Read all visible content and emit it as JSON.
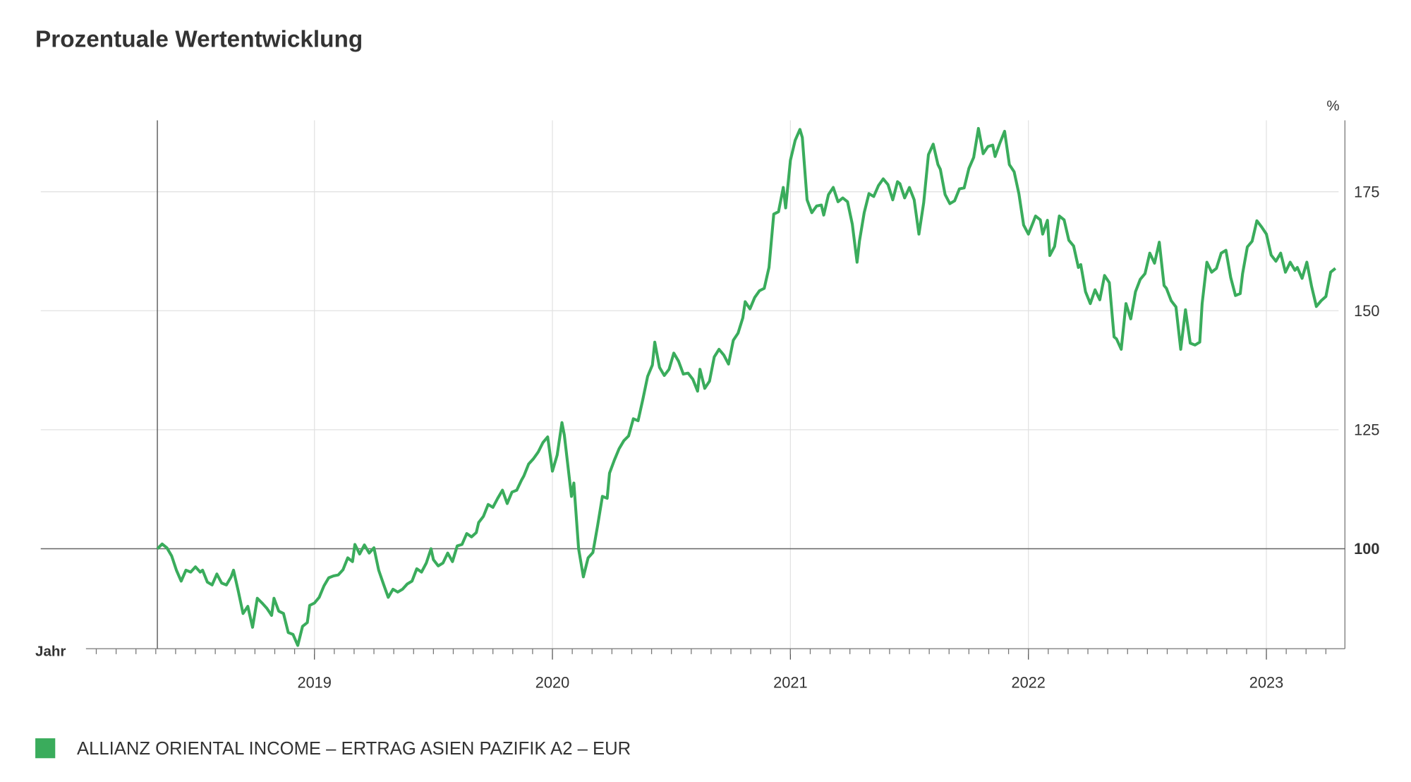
{
  "chart_data": {
    "type": "line",
    "title": "Prozentuale Wertentwicklung",
    "x_label": "Jahr",
    "y_label": "%",
    "xlim": [
      2018.04,
      2023.33
    ],
    "xticks": [
      2019,
      2020,
      2021,
      2022,
      2023
    ],
    "ylim": [
      79,
      190
    ],
    "yticks": [
      100,
      125,
      150,
      175
    ],
    "baseline": 100,
    "grid": true,
    "legend": "bottom-left",
    "x": [
      2018.34,
      2018.36,
      2018.38,
      2018.4,
      2018.42,
      2018.44,
      2018.46,
      2018.48,
      2018.5,
      2018.52,
      2018.53,
      2018.55,
      2018.57,
      2018.59,
      2018.61,
      2018.63,
      2018.65,
      2018.66,
      2018.68,
      2018.7,
      2018.72,
      2018.74,
      2018.76,
      2018.78,
      2018.8,
      2018.82,
      2018.83,
      2018.85,
      2018.87,
      2018.89,
      2018.91,
      2018.93,
      2018.95,
      2018.97,
      2018.98,
      2019.0,
      2019.02,
      2019.04,
      2019.06,
      2019.08,
      2019.1,
      2019.12,
      2019.14,
      2019.16,
      2019.17,
      2019.19,
      2019.21,
      2019.23,
      2019.25,
      2019.27,
      2019.29,
      2019.31,
      2019.33,
      2019.35,
      2019.37,
      2019.39,
      2019.41,
      2019.43,
      2019.45,
      2019.47,
      2019.49,
      2019.5,
      2019.52,
      2019.54,
      2019.56,
      2019.58,
      2019.6,
      2019.62,
      2019.64,
      2019.66,
      2019.68,
      2019.69,
      2019.71,
      2019.73,
      2019.75,
      2019.77,
      2019.79,
      2019.81,
      2019.83,
      2019.85,
      2019.87,
      2019.88,
      2019.9,
      2019.92,
      2019.94,
      2019.96,
      2019.98,
      2020.0,
      2020.02,
      2020.04,
      2020.05,
      2020.08,
      2020.09,
      2020.11,
      2020.13,
      2020.15,
      2020.17,
      2020.19,
      2020.21,
      2020.23,
      2020.24,
      2020.26,
      2020.28,
      2020.3,
      2020.32,
      2020.34,
      2020.36,
      2020.38,
      2020.4,
      2020.42,
      2020.43,
      2020.45,
      2020.47,
      2020.49,
      2020.51,
      2020.53,
      2020.55,
      2020.57,
      2020.59,
      2020.61,
      2020.62,
      2020.64,
      2020.66,
      2020.68,
      2020.7,
      2020.72,
      2020.74,
      2020.76,
      2020.78,
      2020.8,
      2020.81,
      2020.83,
      2020.85,
      2020.87,
      2020.89,
      2020.91,
      2020.93,
      2020.95,
      2020.97,
      2020.98,
      2021.0,
      2021.02,
      2021.04,
      2021.05,
      2021.07,
      2021.09,
      2021.11,
      2021.13,
      2021.14,
      2021.16,
      2021.18,
      2021.2,
      2021.22,
      2021.24,
      2021.26,
      2021.28,
      2021.29,
      2021.31,
      2021.33,
      2021.35,
      2021.37,
      2021.39,
      2021.41,
      2021.43,
      2021.45,
      2021.46,
      2021.48,
      2021.5,
      2021.52,
      2021.54,
      2021.56,
      2021.58,
      2021.6,
      2021.62,
      2021.63,
      2021.65,
      2021.67,
      2021.69,
      2021.71,
      2021.73,
      2021.75,
      2021.77,
      2021.79,
      2021.81,
      2021.83,
      2021.85,
      2021.86,
      2021.88,
      2021.9,
      2021.92,
      2021.94,
      2021.96,
      2021.98,
      2022.0,
      2022.02,
      2022.03,
      2022.05,
      2022.06,
      2022.08,
      2022.09,
      2022.11,
      2022.13,
      2022.15,
      2022.17,
      2022.19,
      2022.21,
      2022.22,
      2022.24,
      2022.26,
      2022.28,
      2022.3,
      2022.32,
      2022.34,
      2022.36,
      2022.37,
      2022.39,
      2022.41,
      2022.43,
      2022.45,
      2022.47,
      2022.49,
      2022.51,
      2022.53,
      2022.55,
      2022.57,
      2022.58,
      2022.6,
      2022.62,
      2022.64,
      2022.66,
      2022.68,
      2022.7,
      2022.72,
      2022.73,
      2022.75,
      2022.77,
      2022.79,
      2022.81,
      2022.83,
      2022.85,
      2022.87,
      2022.89,
      2022.9,
      2022.92,
      2022.94,
      2022.96,
      2022.98,
      2023.0,
      2023.02,
      2023.04,
      2023.06,
      2023.08,
      2023.1,
      2023.12,
      2023.13,
      2023.15,
      2023.17,
      2023.19,
      2023.21,
      2023.23,
      2023.25,
      2023.27,
      2023.29
    ],
    "series": [
      {
        "name": "ALLIANZ ORIENTAL INCOME – ERTRAG ASIEN PAZIFIK A2 – EUR",
        "color": "#3aac5c",
        "values": [
          100,
          101,
          100.2,
          98.5,
          95.5,
          93.2,
          95.5,
          95.1,
          96.2,
          95.1,
          95.5,
          93,
          92.4,
          94.7,
          92.8,
          92.4,
          94.1,
          95.5,
          91.1,
          86.4,
          87.9,
          83.5,
          89.6,
          88.6,
          87.5,
          86,
          89.6,
          86.9,
          86.4,
          82.4,
          82,
          79.7,
          83.7,
          84.5,
          88.1,
          88.6,
          89.8,
          92.2,
          93.9,
          94.3,
          94.5,
          95.6,
          98.1,
          97.3,
          100.9,
          98.9,
          100.8,
          99.1,
          100.2,
          95.5,
          92.6,
          89.8,
          91.5,
          90.9,
          91.5,
          92.6,
          93.2,
          95.8,
          95.1,
          97,
          100,
          97.7,
          96.4,
          97,
          99.1,
          97.3,
          100.6,
          100.9,
          103.2,
          102.5,
          103.4,
          105.5,
          106.8,
          109.3,
          108.7,
          110.6,
          112.3,
          109.5,
          111.9,
          112.3,
          114.4,
          115.3,
          117.8,
          118.9,
          120.3,
          122.3,
          123.5,
          116.3,
          119.7,
          126.5,
          123.9,
          111,
          113.8,
          100,
          94.1,
          98.1,
          99.2,
          104.9,
          111,
          110.6,
          115.9,
          118.6,
          121,
          122.7,
          123.7,
          127.3,
          126.9,
          131.4,
          136.2,
          138.6,
          143.4,
          138.1,
          136.4,
          137.7,
          141.1,
          139.4,
          136.7,
          136.9,
          135.6,
          133.1,
          137.7,
          133.7,
          135.2,
          140.3,
          141.9,
          140.7,
          138.8,
          143.8,
          145.3,
          148.5,
          151.9,
          150.4,
          152.8,
          154.2,
          154.7,
          159.1,
          170.3,
          170.8,
          175.9,
          171.6,
          181.6,
          185.8,
          188.1,
          186.4,
          173.3,
          170.6,
          172,
          172.2,
          170.1,
          174.4,
          175.9,
          172.9,
          173.7,
          172.9,
          168.2,
          160.2,
          164.6,
          170.6,
          174.6,
          174,
          176.3,
          177.7,
          176.5,
          173.3,
          177.1,
          176.7,
          173.7,
          175.9,
          173.3,
          166.1,
          172.7,
          182.8,
          185,
          180.7,
          179.7,
          174.4,
          172.5,
          173.1,
          175.6,
          175.8,
          179.9,
          182.2,
          188.3,
          183,
          184.5,
          184.8,
          182.4,
          185.2,
          187.7,
          180.7,
          179.2,
          174.6,
          168,
          166.1,
          168.6,
          169.9,
          169.1,
          166.1,
          169,
          161.6,
          163.5,
          169.9,
          169.1,
          164.8,
          163.6,
          159.1,
          159.7,
          154,
          151.5,
          154.4,
          152.3,
          157.4,
          155.9,
          144.5,
          144.1,
          141.9,
          151.5,
          148.3,
          154,
          156.6,
          157.8,
          162.1,
          160,
          164.4,
          155.3,
          154.7,
          152.1,
          150.8,
          141.9,
          150.2,
          143.2,
          142.8,
          143.4,
          151.5,
          160.2,
          158.1,
          158.9,
          162.1,
          162.7,
          157,
          153.2,
          153.6,
          157.8,
          163.4,
          164.6,
          168.9,
          167.6,
          166.1,
          161.7,
          160.4,
          162.1,
          158.1,
          160.2,
          158.5,
          159.1,
          156.8,
          160.2,
          155.1,
          150.9,
          152.1,
          153,
          158.1,
          158.9
        ]
      }
    ]
  }
}
